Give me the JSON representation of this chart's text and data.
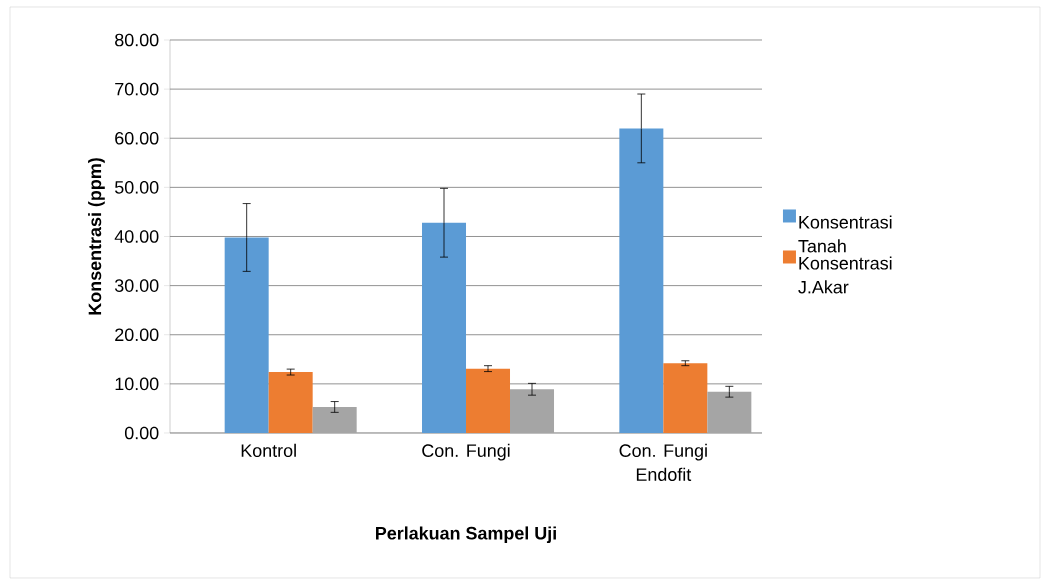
{
  "chart_data": {
    "type": "bar",
    "xlabel": "Perlakuan Sampel Uji",
    "ylabel": "Konsentrasi (ppm)",
    "categories": [
      "Kontrol",
      "Con. Fungi",
      "Con. Fungi Endofit"
    ],
    "series": [
      {
        "name": "Konsentrasi Tanah",
        "color": "#5b9bd5",
        "values": [
          39.8,
          42.8,
          62.0
        ],
        "errors": [
          6.9,
          7.0,
          7.0
        ]
      },
      {
        "name": "Konsentrasi J.Akar",
        "color": "#ed7d31",
        "values": [
          12.4,
          13.1,
          14.2
        ],
        "errors": [
          0.6,
          0.6,
          0.5
        ]
      },
      {
        "color": "#a5a5a5",
        "values": [
          5.3,
          8.9,
          8.4
        ],
        "errors": [
          1.1,
          1.2,
          1.1
        ]
      }
    ],
    "ylim": [
      0,
      80
    ],
    "yticks": [
      {
        "value": 0,
        "label": "0.00"
      },
      {
        "value": 10,
        "label": "10.00"
      },
      {
        "value": 20,
        "label": "20.00"
      },
      {
        "value": 30,
        "label": "30.00"
      },
      {
        "value": 40,
        "label": "40.00"
      },
      {
        "value": 50,
        "label": "50.00"
      },
      {
        "value": 60,
        "label": "60.00"
      },
      {
        "value": 70,
        "label": "70.00"
      },
      {
        "value": 80,
        "label": "80.00"
      }
    ],
    "grid": "y",
    "legend": "right"
  }
}
